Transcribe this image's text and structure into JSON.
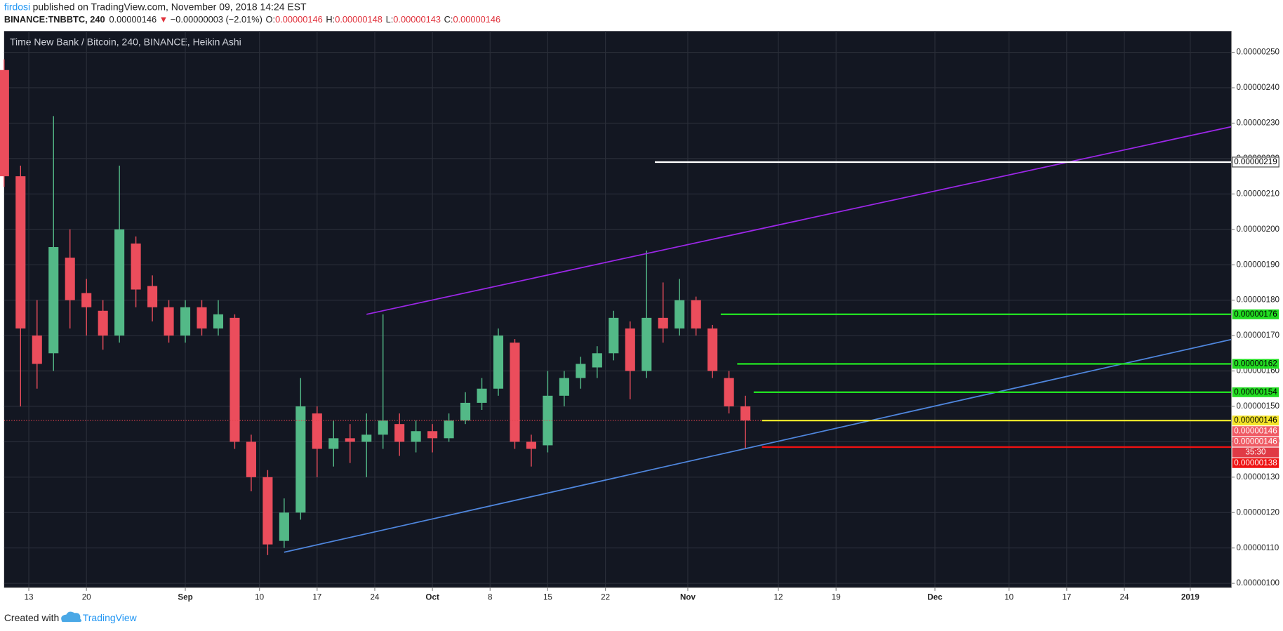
{
  "header": {
    "author": "firdosi",
    "published": "published on TradingView.com, November 09, 2018 14:24 EST",
    "symbol": "BINANCE:TNBBTC, 240",
    "last": "0.00000146",
    "arrow": "▼",
    "change": "−0.00000003 (−2.01%)",
    "o_label": "O:",
    "o": "0.00000146",
    "h_label": "H:",
    "h": "0.00000148",
    "l_label": "L:",
    "l": "0.00000143",
    "c_label": "C:",
    "c": "0.00000146"
  },
  "footer": {
    "created": "Created with",
    "brand": "TradingView"
  },
  "chart_data": {
    "type": "candlestick",
    "title": "Time New Bank / Bitcoin, 240, BINANCE, Heikin Ashi",
    "up_color": "#53b987",
    "down_color": "#eb4d5c",
    "background": "#131722",
    "grid": true,
    "xlim": [
      "2018-08-10",
      "2019-01-06"
    ],
    "xticks": [
      {
        "value": "2018-08-13",
        "label": "13"
      },
      {
        "value": "2018-08-20",
        "label": "20"
      },
      {
        "value": "2018-09-01",
        "label": "Sep"
      },
      {
        "value": "2018-09-10",
        "label": "10"
      },
      {
        "value": "2018-09-17",
        "label": "17"
      },
      {
        "value": "2018-09-24",
        "label": "24"
      },
      {
        "value": "2018-10-01",
        "label": "Oct"
      },
      {
        "value": "2018-10-08",
        "label": "8"
      },
      {
        "value": "2018-10-15",
        "label": "15"
      },
      {
        "value": "2018-10-22",
        "label": "22"
      },
      {
        "value": "2018-11-01",
        "label": "Nov"
      },
      {
        "value": "2018-11-12",
        "label": "12"
      },
      {
        "value": "2018-11-19",
        "label": "19"
      },
      {
        "value": "2018-12-01",
        "label": "Dec"
      },
      {
        "value": "2018-12-10",
        "label": "10"
      },
      {
        "value": "2018-12-17",
        "label": "17"
      },
      {
        "value": "2018-12-24",
        "label": "24"
      },
      {
        "value": "2019-01-01",
        "label": "2019"
      }
    ],
    "ylim": [
      9.88e-07,
      2.56e-06
    ],
    "yticks": [
      {
        "value": 1e-06,
        "label": "0.00000100"
      },
      {
        "value": 1.1e-06,
        "label": "0.00000110"
      },
      {
        "value": 1.2e-06,
        "label": "0.00000120"
      },
      {
        "value": 1.3e-06,
        "label": "0.00000130"
      },
      {
        "value": 1.4e-06,
        "label": "0.00000140"
      },
      {
        "value": 1.5e-06,
        "label": "0.00000150"
      },
      {
        "value": 1.6e-06,
        "label": "0.00000160"
      },
      {
        "value": 1.7e-06,
        "label": "0.00000170"
      },
      {
        "value": 1.8e-06,
        "label": "0.00000180"
      },
      {
        "value": 1.9e-06,
        "label": "0.00000190"
      },
      {
        "value": 2e-06,
        "label": "0.00000200"
      },
      {
        "value": 2.1e-06,
        "label": "0.00000210"
      },
      {
        "value": 2.2e-06,
        "label": "0.00000220"
      },
      {
        "value": 2.3e-06,
        "label": "0.00000230"
      },
      {
        "value": 2.4e-06,
        "label": "0.00000240"
      },
      {
        "value": 2.5e-06,
        "label": "0.00000250"
      }
    ],
    "x": [
      "2018-08-10",
      "2018-08-12",
      "2018-08-14",
      "2018-08-16",
      "2018-08-18",
      "2018-08-20",
      "2018-08-22",
      "2018-08-24",
      "2018-08-26",
      "2018-08-28",
      "2018-08-30",
      "2018-09-01",
      "2018-09-03",
      "2018-09-05",
      "2018-09-07",
      "2018-09-09",
      "2018-09-11",
      "2018-09-13",
      "2018-09-15",
      "2018-09-17",
      "2018-09-19",
      "2018-09-21",
      "2018-09-23",
      "2018-09-25",
      "2018-09-27",
      "2018-09-29",
      "2018-10-01",
      "2018-10-03",
      "2018-10-05",
      "2018-10-07",
      "2018-10-09",
      "2018-10-11",
      "2018-10-13",
      "2018-10-15",
      "2018-10-17",
      "2018-10-19",
      "2018-10-21",
      "2018-10-23",
      "2018-10-25",
      "2018-10-27",
      "2018-10-29",
      "2018-10-31",
      "2018-11-02",
      "2018-11-04",
      "2018-11-06",
      "2018-11-08"
    ],
    "open": [
      2.45e-06,
      2.15e-06,
      1.7e-06,
      1.65e-06,
      1.92e-06,
      1.82e-06,
      1.77e-06,
      1.7e-06,
      1.96e-06,
      1.84e-06,
      1.78e-06,
      1.7e-06,
      1.78e-06,
      1.72e-06,
      1.75e-06,
      1.4e-06,
      1.3e-06,
      1.12e-06,
      1.2e-06,
      1.48e-06,
      1.38e-06,
      1.41e-06,
      1.4e-06,
      1.42e-06,
      1.45e-06,
      1.4e-06,
      1.43e-06,
      1.41e-06,
      1.46e-06,
      1.51e-06,
      1.55e-06,
      1.68e-06,
      1.4e-06,
      1.39e-06,
      1.53e-06,
      1.58e-06,
      1.61e-06,
      1.65e-06,
      1.72e-06,
      1.6e-06,
      1.75e-06,
      1.72e-06,
      1.8e-06,
      1.72e-06,
      1.58e-06,
      1.5e-06
    ],
    "high": [
      2.48e-06,
      2.18e-06,
      1.8e-06,
      2.32e-06,
      2e-06,
      1.86e-06,
      1.8e-06,
      2.18e-06,
      1.98e-06,
      1.87e-06,
      1.8e-06,
      1.8e-06,
      1.8e-06,
      1.8e-06,
      1.76e-06,
      1.42e-06,
      1.32e-06,
      1.24e-06,
      1.58e-06,
      1.5e-06,
      1.46e-06,
      1.45e-06,
      1.48e-06,
      1.76e-06,
      1.48e-06,
      1.46e-06,
      1.45e-06,
      1.48e-06,
      1.54e-06,
      1.58e-06,
      1.72e-06,
      1.69e-06,
      1.42e-06,
      1.6e-06,
      1.6e-06,
      1.64e-06,
      1.67e-06,
      1.77e-06,
      1.74e-06,
      1.94e-06,
      1.85e-06,
      1.86e-06,
      1.81e-06,
      1.73e-06,
      1.6e-06,
      1.53e-06
    ],
    "low": [
      2.12e-06,
      1.5e-06,
      1.55e-06,
      1.6e-06,
      1.72e-06,
      1.7e-06,
      1.66e-06,
      1.68e-06,
      1.78e-06,
      1.74e-06,
      1.68e-06,
      1.68e-06,
      1.7e-06,
      1.7e-06,
      1.38e-06,
      1.26e-06,
      1.08e-06,
      1.1e-06,
      1.18e-06,
      1.3e-06,
      1.33e-06,
      1.34e-06,
      1.3e-06,
      1.38e-06,
      1.36e-06,
      1.37e-06,
      1.37e-06,
      1.4e-06,
      1.45e-06,
      1.49e-06,
      1.53e-06,
      1.38e-06,
      1.33e-06,
      1.37e-06,
      1.5e-06,
      1.55e-06,
      1.58e-06,
      1.63e-06,
      1.52e-06,
      1.58e-06,
      1.68e-06,
      1.7e-06,
      1.7e-06,
      1.58e-06,
      1.48e-06,
      1.38e-06
    ],
    "close": [
      2.15e-06,
      1.72e-06,
      1.62e-06,
      1.95e-06,
      1.8e-06,
      1.78e-06,
      1.7e-06,
      2e-06,
      1.83e-06,
      1.78e-06,
      1.7e-06,
      1.78e-06,
      1.72e-06,
      1.76e-06,
      1.4e-06,
      1.3e-06,
      1.11e-06,
      1.2e-06,
      1.5e-06,
      1.38e-06,
      1.41e-06,
      1.4e-06,
      1.42e-06,
      1.46e-06,
      1.4e-06,
      1.43e-06,
      1.41e-06,
      1.46e-06,
      1.51e-06,
      1.55e-06,
      1.7e-06,
      1.4e-06,
      1.38e-06,
      1.53e-06,
      1.58e-06,
      1.62e-06,
      1.65e-06,
      1.75e-06,
      1.6e-06,
      1.75e-06,
      1.72e-06,
      1.8e-06,
      1.72e-06,
      1.6e-06,
      1.5e-06,
      1.46e-06
    ],
    "trendlines": [
      {
        "color": "#9c27e8",
        "x": [
          "2018-09-23",
          "2019-01-06"
        ],
        "values": [
          1.76e-06,
          2.29e-06
        ]
      },
      {
        "color": "#4f86dd",
        "x": [
          "2018-09-13",
          "2019-01-06"
        ],
        "values": [
          1.088e-06,
          1.689e-06
        ]
      }
    ],
    "last_price_line": {
      "value": 1.46e-06,
      "color": "#e5434f"
    },
    "price_levels": [
      {
        "start": "2018-10-28",
        "value": 2.19e-06,
        "label": "0.00000219",
        "color": "#ffffff",
        "text_color": "#000000"
      },
      {
        "start": "2018-11-05",
        "value": 1.76e-06,
        "label": "0.00000176",
        "color": "#22dd22",
        "text_color": "#000000"
      },
      {
        "start": "2018-11-07",
        "value": 1.62e-06,
        "label": "0.00000162",
        "color": "#22dd22",
        "text_color": "#000000"
      },
      {
        "start": "2018-11-09",
        "value": 1.54e-06,
        "label": "0.00000154",
        "color": "#22dd22",
        "text_color": "#000000"
      },
      {
        "start": "2018-11-10",
        "value": 1.46e-06,
        "label": "0.00000146",
        "color": "#f5e52a",
        "text_color": "#000000"
      },
      {
        "value": 1.46e-06,
        "label": "0.00000146",
        "color": "#ef5a64",
        "text_color": "#ffffff"
      },
      {
        "value": 1.46e-06,
        "label": "0.00000146",
        "color": "#ef5a64",
        "text_color": "#ffffff"
      },
      {
        "label": "35:30",
        "color": "#e03a45",
        "text_color": "#ffffff"
      },
      {
        "start": "2018-11-10",
        "value": 1.385e-06,
        "label": "0.00000138",
        "color": "#ee1111",
        "text_color": "#ffffff"
      }
    ]
  }
}
